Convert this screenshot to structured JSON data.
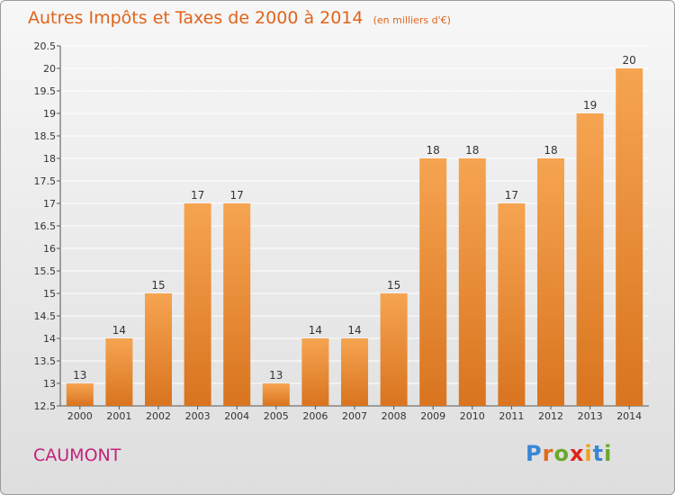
{
  "title": "Autres Impôts et Taxes de 2000 à 2014",
  "unit_note": "(en milliers d'€)",
  "place_name": "CAUMONT",
  "logo": {
    "text": "Proxiti",
    "letter_colors": [
      "#3a86d4",
      "#e06a1a",
      "#6aa82a",
      "#e0241a",
      "#f0a01a",
      "#3a86d4",
      "#6aa82a"
    ]
  },
  "colors": {
    "bar_top": "#f6a451",
    "bar_bottom": "#d9741f",
    "grid": "#ffffff",
    "axis_text": "#333333"
  },
  "chart_data": {
    "type": "bar",
    "title": "Autres Impôts et Taxes de 2000 à 2014",
    "categories": [
      "2000",
      "2001",
      "2002",
      "2003",
      "2004",
      "2005",
      "2006",
      "2007",
      "2008",
      "2009",
      "2010",
      "2011",
      "2012",
      "2013",
      "2014"
    ],
    "values": [
      13,
      14,
      15,
      17,
      17,
      13,
      14,
      14,
      15,
      18,
      18,
      17,
      18,
      19,
      20
    ],
    "data_labels": [
      "13",
      "14",
      "15",
      "17",
      "17",
      "13",
      "14",
      "14",
      "15",
      "18",
      "18",
      "17",
      "18",
      "19",
      "20"
    ],
    "ylim": [
      12.5,
      20.5
    ],
    "yticks": [
      "12.5",
      "13",
      "13.5",
      "14",
      "14.5",
      "15",
      "15.5",
      "16",
      "16.5",
      "17",
      "17.5",
      "18",
      "18.5",
      "19",
      "19.5",
      "20",
      "20.5"
    ],
    "xlabel": "",
    "ylabel": "",
    "grid": true,
    "legend": "none"
  }
}
